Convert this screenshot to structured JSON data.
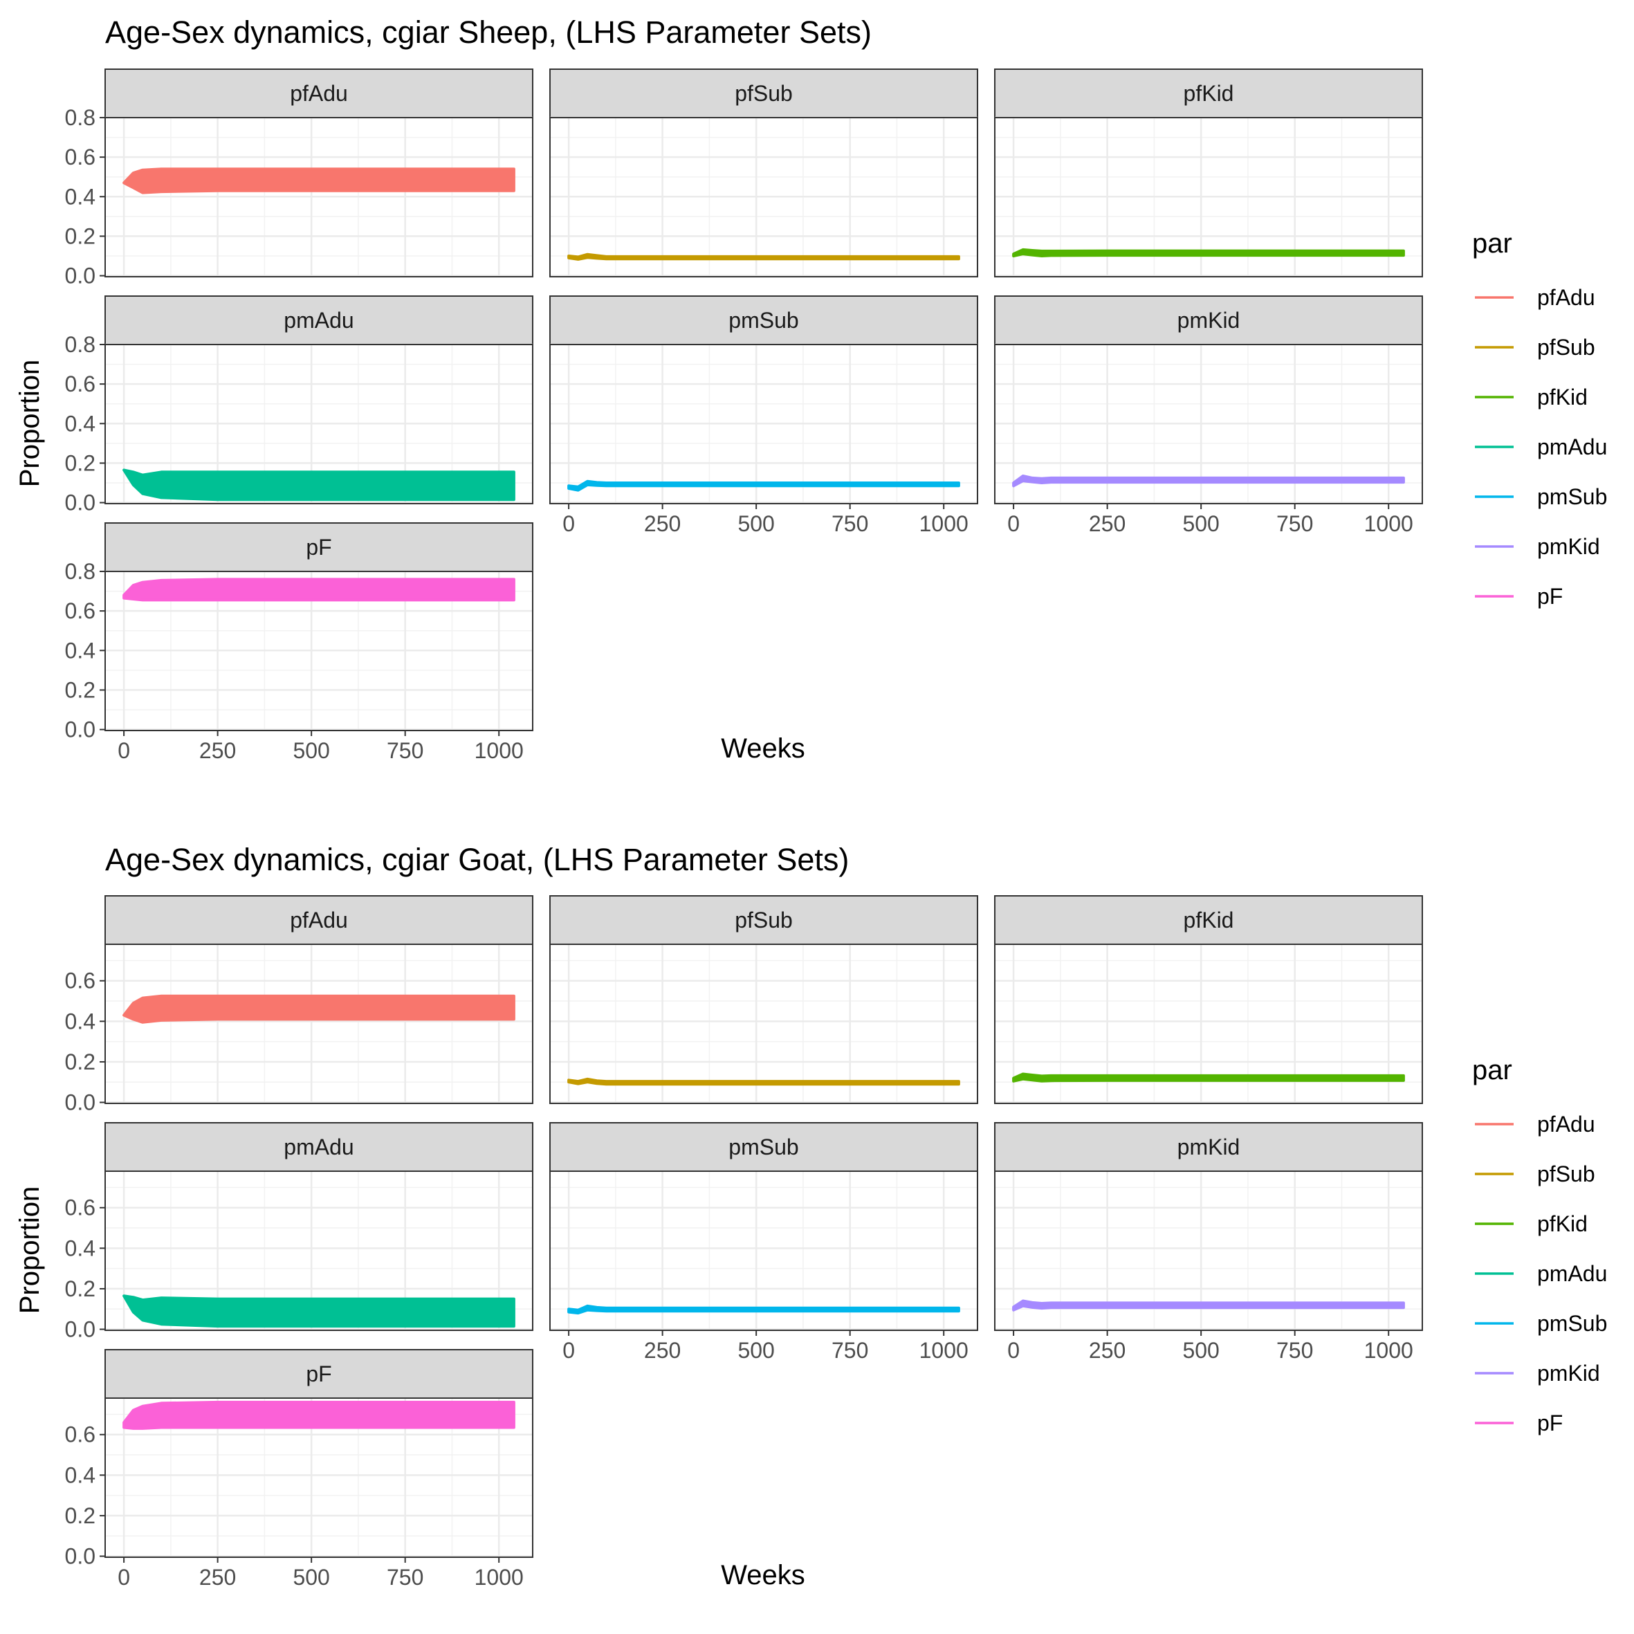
{
  "chart_data": [
    {
      "type": "line",
      "title": "Age-Sex dynamics, cgiar Sheep, (LHS Parameter Sets)",
      "xlabel": "Weeks",
      "ylabel": "Proportion",
      "x_ticks": [
        0,
        250,
        500,
        750,
        1000
      ],
      "xlim": [
        -50,
        1090
      ],
      "y_ticks": [
        0.0,
        0.2,
        0.4,
        0.6,
        0.8
      ],
      "y_tick_labels": [
        "0.0",
        "0.2",
        "0.4",
        "0.6",
        "0.8"
      ],
      "ylim": [
        -0.005,
        0.8
      ],
      "grid": true,
      "legend": {
        "title": "par",
        "position": "right"
      },
      "facet_order": [
        "pfAdu",
        "pfSub",
        "pfKid",
        "pmAdu",
        "pmSub",
        "pmKid",
        "pF"
      ],
      "series": [
        {
          "name": "pfAdu",
          "color": "#F8766D",
          "x": [
            0,
            25,
            50,
            100,
            250,
            500,
            750,
            1040
          ],
          "upper": [
            0.47,
            0.52,
            0.535,
            0.54,
            0.54,
            0.54,
            0.54,
            0.54
          ],
          "lower": [
            0.47,
            0.445,
            0.42,
            0.425,
            0.43,
            0.43,
            0.43,
            0.43
          ]
        },
        {
          "name": "pfSub",
          "color": "#C49A00",
          "x": [
            0,
            25,
            50,
            75,
            100,
            250,
            500,
            750,
            1040
          ],
          "upper": [
            0.1,
            0.095,
            0.108,
            0.102,
            0.097,
            0.097,
            0.097,
            0.097,
            0.097
          ],
          "lower": [
            0.09,
            0.083,
            0.092,
            0.088,
            0.085,
            0.085,
            0.085,
            0.085,
            0.085
          ]
        },
        {
          "name": "pfKid",
          "color": "#53B400",
          "x": [
            0,
            25,
            50,
            75,
            100,
            250,
            500,
            750,
            1040
          ],
          "upper": [
            0.11,
            0.132,
            0.128,
            0.125,
            0.125,
            0.126,
            0.126,
            0.126,
            0.126
          ],
          "lower": [
            0.1,
            0.11,
            0.105,
            0.1,
            0.102,
            0.103,
            0.103,
            0.103,
            0.103
          ]
        },
        {
          "name": "pmAdu",
          "color": "#00C094",
          "x": [
            0,
            25,
            50,
            100,
            250,
            500,
            750,
            1040
          ],
          "upper": [
            0.165,
            0.155,
            0.14,
            0.155,
            0.155,
            0.155,
            0.155,
            0.155
          ],
          "lower": [
            0.165,
            0.09,
            0.045,
            0.025,
            0.015,
            0.015,
            0.015,
            0.015
          ]
        },
        {
          "name": "pmSub",
          "color": "#00B6EB",
          "x": [
            0,
            25,
            50,
            75,
            100,
            250,
            500,
            750,
            1040
          ],
          "upper": [
            0.085,
            0.08,
            0.108,
            0.102,
            0.1,
            0.1,
            0.1,
            0.1,
            0.1
          ],
          "lower": [
            0.072,
            0.063,
            0.09,
            0.087,
            0.085,
            0.085,
            0.085,
            0.085,
            0.085
          ]
        },
        {
          "name": "pmKid",
          "color": "#A58AFF",
          "x": [
            0,
            25,
            50,
            75,
            100,
            250,
            500,
            750,
            1040
          ],
          "upper": [
            0.1,
            0.135,
            0.125,
            0.122,
            0.125,
            0.125,
            0.125,
            0.125,
            0.125
          ],
          "lower": [
            0.085,
            0.11,
            0.105,
            0.1,
            0.103,
            0.103,
            0.103,
            0.103,
            0.103
          ]
        },
        {
          "name": "pF",
          "color": "#FB61D7",
          "x": [
            0,
            25,
            50,
            100,
            250,
            500,
            750,
            1040
          ],
          "upper": [
            0.68,
            0.73,
            0.745,
            0.755,
            0.76,
            0.76,
            0.76,
            0.76
          ],
          "lower": [
            0.665,
            0.66,
            0.655,
            0.655,
            0.655,
            0.655,
            0.655,
            0.655
          ]
        }
      ]
    },
    {
      "type": "line",
      "title": "Age-Sex dynamics, cgiar Goat, (LHS Parameter Sets)",
      "xlabel": "Weeks",
      "ylabel": "Proportion",
      "x_ticks": [
        0,
        250,
        500,
        750,
        1000
      ],
      "xlim": [
        -50,
        1090
      ],
      "y_ticks": [
        0.0,
        0.2,
        0.4,
        0.6
      ],
      "y_tick_labels": [
        "0.0",
        "0.2",
        "0.4",
        "0.6"
      ],
      "ylim": [
        -0.005,
        0.78
      ],
      "grid": true,
      "legend": {
        "title": "par",
        "position": "right"
      },
      "facet_order": [
        "pfAdu",
        "pfSub",
        "pfKid",
        "pmAdu",
        "pmSub",
        "pmKid",
        "pF"
      ],
      "series": [
        {
          "name": "pfAdu",
          "color": "#F8766D",
          "x": [
            0,
            25,
            50,
            100,
            250,
            500,
            750,
            1040
          ],
          "upper": [
            0.43,
            0.49,
            0.515,
            0.525,
            0.525,
            0.525,
            0.525,
            0.525
          ],
          "lower": [
            0.43,
            0.41,
            0.395,
            0.405,
            0.41,
            0.41,
            0.41,
            0.41
          ]
        },
        {
          "name": "pfSub",
          "color": "#C49A00",
          "x": [
            0,
            25,
            50,
            75,
            100,
            250,
            500,
            750,
            1040
          ],
          "upper": [
            0.11,
            0.104,
            0.115,
            0.107,
            0.104,
            0.104,
            0.104,
            0.104,
            0.104
          ],
          "lower": [
            0.1,
            0.092,
            0.1,
            0.093,
            0.09,
            0.09,
            0.09,
            0.09,
            0.09
          ]
        },
        {
          "name": "pfKid",
          "color": "#53B400",
          "x": [
            0,
            25,
            50,
            75,
            100,
            250,
            500,
            750,
            1040
          ],
          "upper": [
            0.12,
            0.14,
            0.135,
            0.13,
            0.132,
            0.132,
            0.132,
            0.132,
            0.132
          ],
          "lower": [
            0.105,
            0.115,
            0.11,
            0.105,
            0.107,
            0.108,
            0.108,
            0.108,
            0.108
          ]
        },
        {
          "name": "pmAdu",
          "color": "#00C094",
          "x": [
            0,
            25,
            50,
            100,
            250,
            500,
            750,
            1040
          ],
          "upper": [
            0.165,
            0.158,
            0.145,
            0.155,
            0.15,
            0.15,
            0.15,
            0.15
          ],
          "lower": [
            0.165,
            0.085,
            0.045,
            0.025,
            0.015,
            0.015,
            0.015,
            0.015
          ]
        },
        {
          "name": "pmSub",
          "color": "#00B6EB",
          "x": [
            0,
            25,
            50,
            75,
            100,
            250,
            500,
            750,
            1040
          ],
          "upper": [
            0.1,
            0.095,
            0.115,
            0.108,
            0.105,
            0.105,
            0.105,
            0.105,
            0.105
          ],
          "lower": [
            0.085,
            0.08,
            0.095,
            0.092,
            0.09,
            0.09,
            0.09,
            0.09,
            0.09
          ]
        },
        {
          "name": "pmKid",
          "color": "#A58AFF",
          "x": [
            0,
            25,
            50,
            75,
            100,
            250,
            500,
            750,
            1040
          ],
          "upper": [
            0.11,
            0.14,
            0.132,
            0.128,
            0.13,
            0.13,
            0.13,
            0.13,
            0.13
          ],
          "lower": [
            0.095,
            0.115,
            0.108,
            0.104,
            0.107,
            0.107,
            0.107,
            0.107,
            0.107
          ]
        },
        {
          "name": "pF",
          "color": "#FB61D7",
          "x": [
            0,
            25,
            50,
            100,
            250,
            500,
            750,
            1040
          ],
          "upper": [
            0.66,
            0.72,
            0.74,
            0.755,
            0.76,
            0.76,
            0.76,
            0.76
          ],
          "lower": [
            0.635,
            0.63,
            0.63,
            0.635,
            0.635,
            0.635,
            0.635,
            0.635
          ]
        }
      ]
    }
  ]
}
